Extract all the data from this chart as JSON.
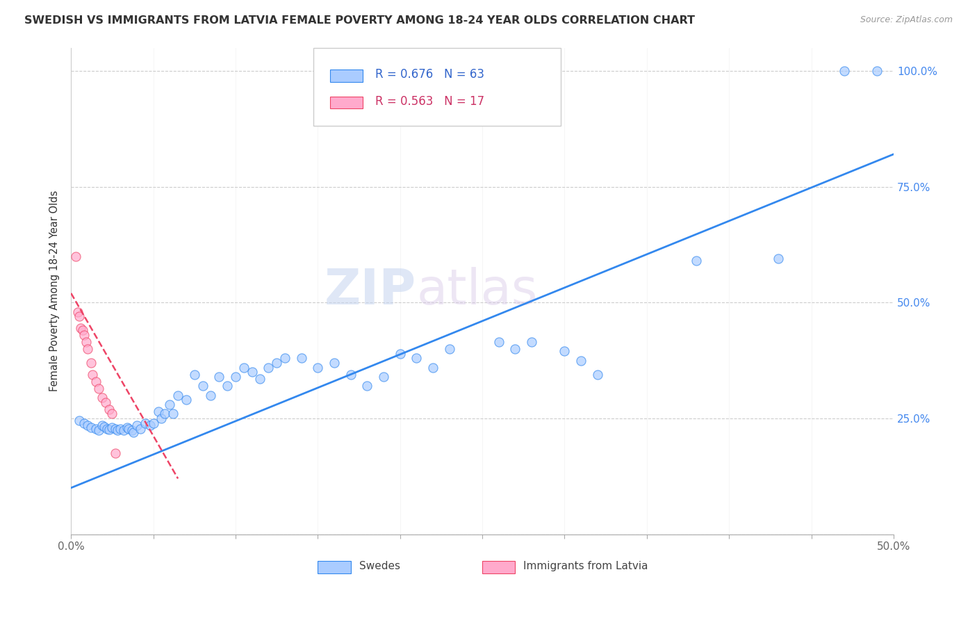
{
  "title": "SWEDISH VS IMMIGRANTS FROM LATVIA FEMALE POVERTY AMONG 18-24 YEAR OLDS CORRELATION CHART",
  "source": "Source: ZipAtlas.com",
  "ylabel": "Female Poverty Among 18-24 Year Olds",
  "xlim": [
    0.0,
    0.5
  ],
  "ylim": [
    0.0,
    1.05
  ],
  "xticks": [
    0.0,
    0.05,
    0.1,
    0.15,
    0.2,
    0.25,
    0.3,
    0.35,
    0.4,
    0.45,
    0.5
  ],
  "ytick_positions": [
    0.0,
    0.25,
    0.5,
    0.75,
    1.0
  ],
  "ytick_labels": [
    "",
    "25.0%",
    "50.0%",
    "75.0%",
    "100.0%"
  ],
  "xtick_labels": [
    "0.0%",
    "",
    "",
    "",
    "",
    "",
    "",
    "",
    "",
    "",
    "50.0%"
  ],
  "swedes_color": "#aaccff",
  "latvia_color": "#ffaacc",
  "regression_blue": "#3388ee",
  "regression_pink": "#ee4466",
  "legend_r_blue": "R = 0.676",
  "legend_n_blue": "N = 63",
  "legend_r_pink": "R = 0.563",
  "legend_n_pink": "N = 17",
  "watermark_zip": "ZIP",
  "watermark_atlas": "atlas",
  "blue_line_x": [
    0.0,
    0.5
  ],
  "blue_line_y": [
    0.1,
    0.82
  ],
  "pink_line_x": [
    0.0,
    0.065
  ],
  "pink_line_y": [
    0.52,
    0.12
  ],
  "swedes_x": [
    0.005,
    0.008,
    0.01,
    0.012,
    0.015,
    0.017,
    0.019,
    0.02,
    0.022,
    0.023,
    0.025,
    0.027,
    0.028,
    0.03,
    0.032,
    0.034,
    0.035,
    0.037,
    0.038,
    0.04,
    0.042,
    0.045,
    0.048,
    0.05,
    0.053,
    0.055,
    0.057,
    0.06,
    0.062,
    0.065,
    0.07,
    0.075,
    0.08,
    0.085,
    0.09,
    0.095,
    0.1,
    0.105,
    0.11,
    0.115,
    0.12,
    0.125,
    0.13,
    0.14,
    0.15,
    0.16,
    0.17,
    0.18,
    0.19,
    0.2,
    0.21,
    0.22,
    0.23,
    0.26,
    0.27,
    0.28,
    0.3,
    0.31,
    0.32,
    0.38,
    0.43,
    0.47,
    0.49
  ],
  "swedes_y": [
    0.245,
    0.24,
    0.235,
    0.23,
    0.228,
    0.225,
    0.235,
    0.232,
    0.228,
    0.226,
    0.23,
    0.228,
    0.225,
    0.227,
    0.224,
    0.23,
    0.228,
    0.225,
    0.22,
    0.235,
    0.228,
    0.24,
    0.235,
    0.24,
    0.265,
    0.25,
    0.26,
    0.28,
    0.26,
    0.3,
    0.29,
    0.345,
    0.32,
    0.3,
    0.34,
    0.32,
    0.34,
    0.36,
    0.35,
    0.335,
    0.36,
    0.37,
    0.38,
    0.38,
    0.36,
    0.37,
    0.345,
    0.32,
    0.34,
    0.39,
    0.38,
    0.36,
    0.4,
    0.415,
    0.4,
    0.415,
    0.395,
    0.375,
    0.345,
    0.59,
    0.595,
    1.0,
    1.0
  ],
  "latvia_x": [
    0.003,
    0.004,
    0.005,
    0.006,
    0.007,
    0.008,
    0.009,
    0.01,
    0.012,
    0.013,
    0.015,
    0.017,
    0.019,
    0.021,
    0.023,
    0.025,
    0.027
  ],
  "latvia_y": [
    0.6,
    0.48,
    0.47,
    0.445,
    0.44,
    0.43,
    0.415,
    0.4,
    0.37,
    0.345,
    0.33,
    0.315,
    0.295,
    0.285,
    0.27,
    0.26,
    0.175
  ]
}
